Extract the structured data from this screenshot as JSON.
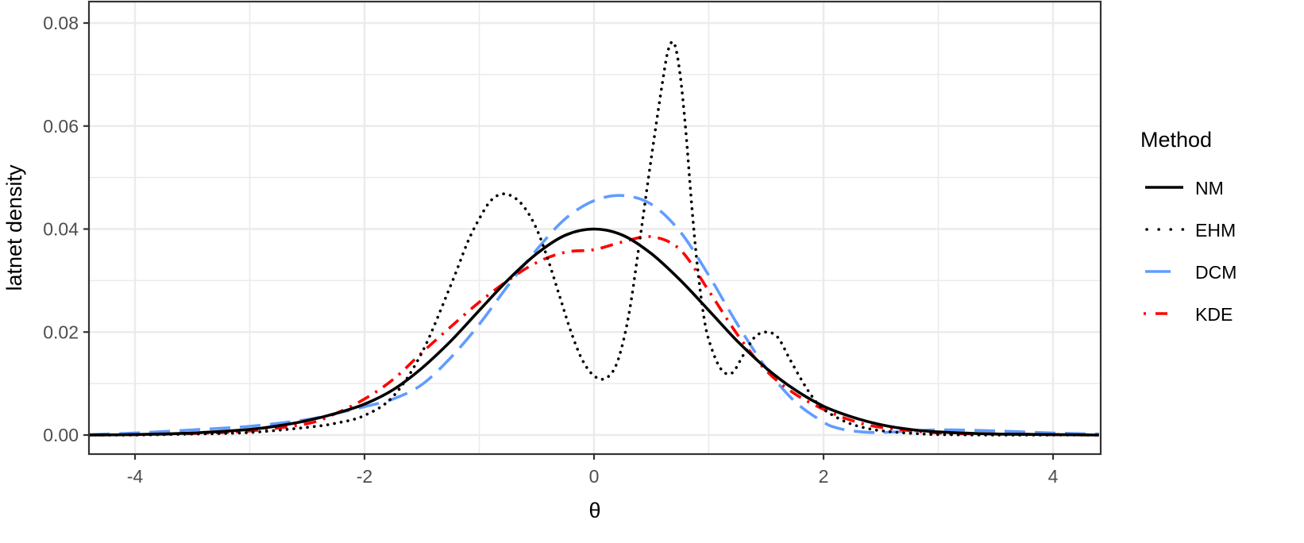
{
  "chart_data": {
    "type": "line",
    "title": "",
    "xlabel": "θ",
    "ylabel": "latnet density",
    "xlim": [
      -4.4,
      4.4
    ],
    "ylim": [
      -0.0037,
      0.0841
    ],
    "x_ticks": [
      -4,
      -2,
      0,
      2,
      4
    ],
    "x_tick_labels": [
      "-4",
      "-2",
      "0",
      "2",
      "4"
    ],
    "y_ticks": [
      0.0,
      0.02,
      0.04,
      0.06,
      0.08
    ],
    "y_tick_labels": [
      "0.00",
      "0.02",
      "0.04",
      "0.06",
      "0.08"
    ],
    "grid": true,
    "legend": {
      "title": "Method",
      "position": "right",
      "entries": [
        "NM",
        "EHM",
        "DCM",
        "KDE"
      ]
    },
    "series": [
      {
        "name": "NM",
        "color": "#000000",
        "linetype": "solid",
        "x": [
          -4.4,
          -4,
          -3.5,
          -3,
          -2.75,
          -2.5,
          -2.25,
          -2,
          -1.75,
          -1.5,
          -1.25,
          -1,
          -0.75,
          -0.5,
          -0.25,
          0,
          0.25,
          0.5,
          0.75,
          1,
          1.25,
          1.5,
          1.75,
          2,
          2.25,
          2.5,
          2.75,
          3,
          3.5,
          4,
          4.4
        ],
        "y": [
          0.0,
          0.0001,
          0.0004,
          0.0011,
          0.0018,
          0.0028,
          0.0042,
          0.006,
          0.0088,
          0.013,
          0.0182,
          0.0242,
          0.0301,
          0.0352,
          0.0388,
          0.04,
          0.0388,
          0.0352,
          0.0301,
          0.0242,
          0.0182,
          0.013,
          0.0088,
          0.0056,
          0.0035,
          0.002,
          0.0011,
          0.0006,
          0.0002,
          0.0001,
          0.0
        ]
      },
      {
        "name": "EHM",
        "color": "#000000",
        "linetype": "dotted",
        "x": [
          -4.4,
          -4,
          -3.5,
          -3,
          -2.5,
          -2.25,
          -2,
          -1.75,
          -1.5,
          -1.25,
          -1.1,
          -1,
          -0.9,
          -0.8,
          -0.7,
          -0.6,
          -0.5,
          -0.4,
          -0.3,
          -0.2,
          -0.1,
          0,
          0.1,
          0.2,
          0.3,
          0.4,
          0.5,
          0.6,
          0.65,
          0.7,
          0.75,
          0.8,
          0.85,
          0.9,
          0.95,
          1.0,
          1.1,
          1.2,
          1.3,
          1.4,
          1.5,
          1.6,
          1.7,
          1.8,
          1.9,
          2.0,
          2.2,
          2.4,
          2.6,
          2.8,
          3.0,
          3.5,
          4,
          4.4
        ],
        "y": [
          0.0,
          0.0,
          0.0002,
          0.0005,
          0.0015,
          0.0023,
          0.0038,
          0.0075,
          0.016,
          0.029,
          0.0375,
          0.042,
          0.0455,
          0.0468,
          0.0462,
          0.044,
          0.04,
          0.034,
          0.027,
          0.02,
          0.0145,
          0.0115,
          0.011,
          0.014,
          0.023,
          0.038,
          0.054,
          0.069,
          0.075,
          0.076,
          0.07,
          0.059,
          0.045,
          0.033,
          0.024,
          0.0185,
          0.013,
          0.012,
          0.0155,
          0.019,
          0.02,
          0.019,
          0.015,
          0.011,
          0.0075,
          0.005,
          0.0025,
          0.0012,
          0.0006,
          0.0003,
          0.0001,
          0.0,
          0.0,
          0.0
        ]
      },
      {
        "name": "DCM",
        "color": "#619CFF",
        "linetype": "longdash",
        "x": [
          -4.4,
          -4,
          -3.5,
          -3,
          -2.5,
          -2.25,
          -2,
          -1.75,
          -1.5,
          -1.25,
          -1,
          -0.75,
          -0.5,
          -0.25,
          0,
          0.25,
          0.5,
          0.75,
          1,
          1.25,
          1.5,
          1.75,
          2,
          2.1,
          2.25,
          2.5,
          3,
          3.5,
          4,
          4.4
        ],
        "y": [
          0.0001,
          0.0004,
          0.001,
          0.0017,
          0.003,
          0.0042,
          0.0055,
          0.007,
          0.0098,
          0.015,
          0.0215,
          0.029,
          0.036,
          0.042,
          0.0455,
          0.0465,
          0.0448,
          0.0395,
          0.031,
          0.0215,
          0.013,
          0.0065,
          0.0025,
          0.0015,
          0.0008,
          0.0005,
          0.001,
          0.0008,
          0.0004,
          0.0002
        ]
      },
      {
        "name": "KDE",
        "color": "#FF0000",
        "linetype": "dotdash",
        "x": [
          -4.4,
          -4,
          -3.5,
          -3,
          -2.5,
          -2.25,
          -2,
          -1.75,
          -1.5,
          -1.25,
          -1,
          -0.75,
          -0.5,
          -0.25,
          0,
          0.25,
          0.5,
          0.75,
          1,
          1.25,
          1.5,
          1.75,
          2,
          2.25,
          2.5,
          3,
          3.5,
          4,
          4.4
        ],
        "y": [
          0.0,
          0.0001,
          0.0003,
          0.0008,
          0.0022,
          0.0042,
          0.007,
          0.0108,
          0.016,
          0.021,
          0.0258,
          0.03,
          0.0335,
          0.0355,
          0.036,
          0.0375,
          0.0385,
          0.036,
          0.028,
          0.0195,
          0.0125,
          0.008,
          0.005,
          0.0028,
          0.0015,
          0.0004,
          0.0002,
          0.0001,
          0.0
        ]
      }
    ]
  },
  "style": {
    "panel_border": "#333333",
    "grid_color": "#ebebeb",
    "tick_color": "#333333",
    "tick_label_color": "#4d4d4d",
    "colors": {
      "NM": "#000000",
      "EHM": "#000000",
      "DCM": "#619CFF",
      "KDE": "#FF0000"
    }
  }
}
